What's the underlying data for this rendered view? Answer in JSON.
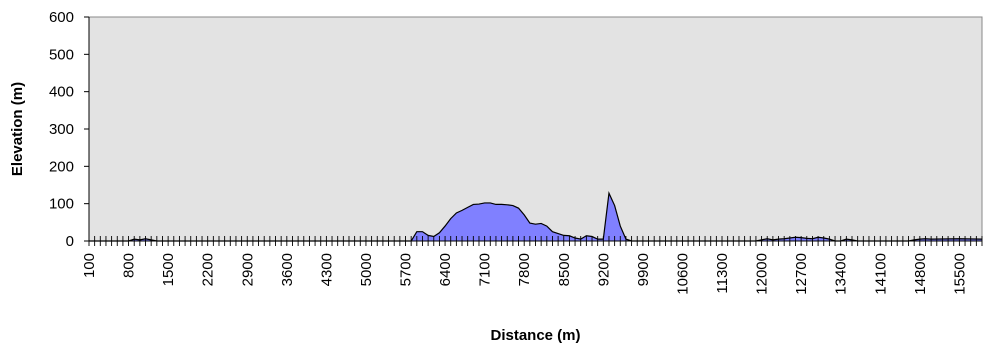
{
  "chart_data": {
    "type": "area",
    "title": "",
    "xlabel": "Distance (m)",
    "ylabel": "Elevation (m)",
    "xlim": [
      100,
      15900
    ],
    "ylim": [
      0,
      600
    ],
    "y_ticks": [
      0,
      100,
      200,
      300,
      400,
      500,
      600
    ],
    "x_tick_labels": [
      "100",
      "800",
      "1500",
      "2200",
      "2900",
      "3600",
      "4300",
      "5000",
      "5700",
      "6400",
      "7100",
      "7800",
      "8500",
      "9200",
      "9900",
      "10600",
      "11300",
      "12000",
      "12700",
      "13400",
      "14100",
      "14800",
      "15500"
    ],
    "x_minor_tick_step": 100,
    "grid": false,
    "legend": "none",
    "colors": {
      "fill": "#8080ff",
      "plot_background": "#e3e3e3",
      "line": "#000000"
    },
    "series": [
      {
        "x": [
          100,
          800,
          900,
          1000,
          1100,
          1200,
          1300,
          5700,
          5800,
          5900,
          6000,
          6100,
          6200,
          6300,
          6400,
          6500,
          6600,
          6700,
          6800,
          6900,
          7000,
          7100,
          7200,
          7300,
          7400,
          7500,
          7600,
          7700,
          7800,
          7900,
          8000,
          8100,
          8200,
          8300,
          8400,
          8500,
          8600,
          8700,
          8800,
          8900,
          9000,
          9100,
          9200,
          9300,
          9400,
          9500,
          9600,
          9700,
          11900,
          12000,
          12100,
          12200,
          12300,
          12400,
          12500,
          12600,
          12700,
          12800,
          12900,
          13000,
          13100,
          13200,
          13300,
          13400,
          13500,
          13600,
          13700,
          14600,
          14700,
          14800,
          14900,
          15000,
          15500,
          15900
        ],
        "values": [
          0,
          0,
          5,
          3,
          6,
          3,
          0,
          0,
          0,
          25,
          25,
          15,
          12,
          22,
          40,
          60,
          75,
          82,
          90,
          98,
          99,
          102,
          102,
          98,
          98,
          97,
          95,
          88,
          70,
          48,
          45,
          47,
          40,
          25,
          20,
          15,
          14,
          8,
          5,
          14,
          12,
          5,
          5,
          128,
          95,
          40,
          5,
          0,
          0,
          3,
          6,
          3,
          5,
          6,
          8,
          10,
          9,
          7,
          6,
          10,
          8,
          5,
          0,
          0,
          5,
          3,
          0,
          0,
          3,
          5,
          6,
          5,
          6,
          5
        ]
      }
    ]
  }
}
